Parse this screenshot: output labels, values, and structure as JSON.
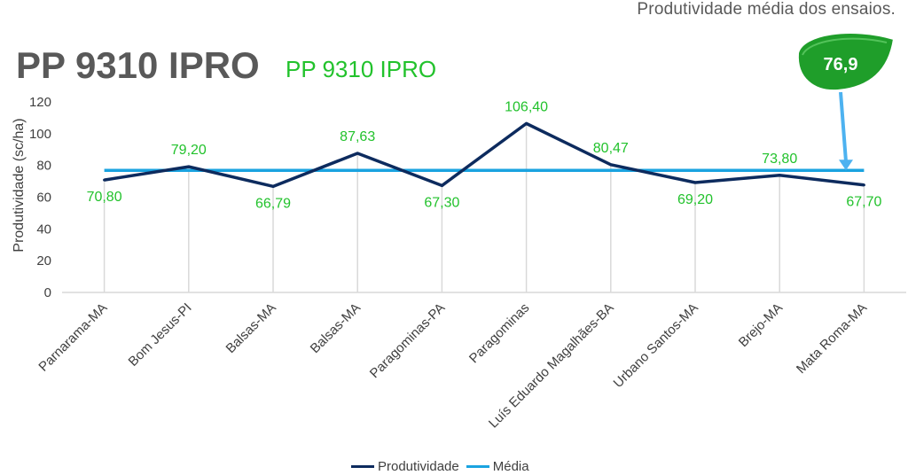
{
  "header": {
    "top_caption": "Produtividade média dos ensaios.",
    "title": "PP 9310 IPRO",
    "subtitle": "PP 9310 IPRO"
  },
  "badge": {
    "value": "76,9",
    "color": "#1f9e2a"
  },
  "colors": {
    "productivity_line": "#0d2b5e",
    "mean_line": "#1aa3e0",
    "label_green": "#22c22c",
    "grid": "#d9d9d9"
  },
  "chart_data": {
    "type": "line",
    "categories": [
      "Parnarama-MA",
      "Bom Jesus-PI",
      "Balsas-MA",
      "Balsas-MA",
      "Paragominas-PA",
      "Paragominas",
      "Luís Eduardo Magalhães-BA",
      "Urbano Santos-MA",
      "Brejo-MA",
      "Mata Roma-MA"
    ],
    "series": [
      {
        "name": "Produtividade",
        "values": [
          70.8,
          79.2,
          66.79,
          87.63,
          67.3,
          106.4,
          80.47,
          69.2,
          73.8,
          67.7
        ],
        "labels": [
          "70,80",
          "79,20",
          "66,79",
          "87,63",
          "67,30",
          "106,40",
          "80,47",
          "69,20",
          "73,80",
          "67,70"
        ]
      },
      {
        "name": "Média",
        "values": [
          76.9,
          76.9,
          76.9,
          76.9,
          76.9,
          76.9,
          76.9,
          76.9,
          76.9,
          76.9
        ]
      }
    ],
    "ylabel": "Produtividade (sc/ha)",
    "ylim": [
      0,
      120
    ],
    "yticks": [
      0,
      20,
      40,
      60,
      80,
      100,
      120
    ],
    "vertical_drop_lines": true,
    "legend": "bottom-center"
  }
}
